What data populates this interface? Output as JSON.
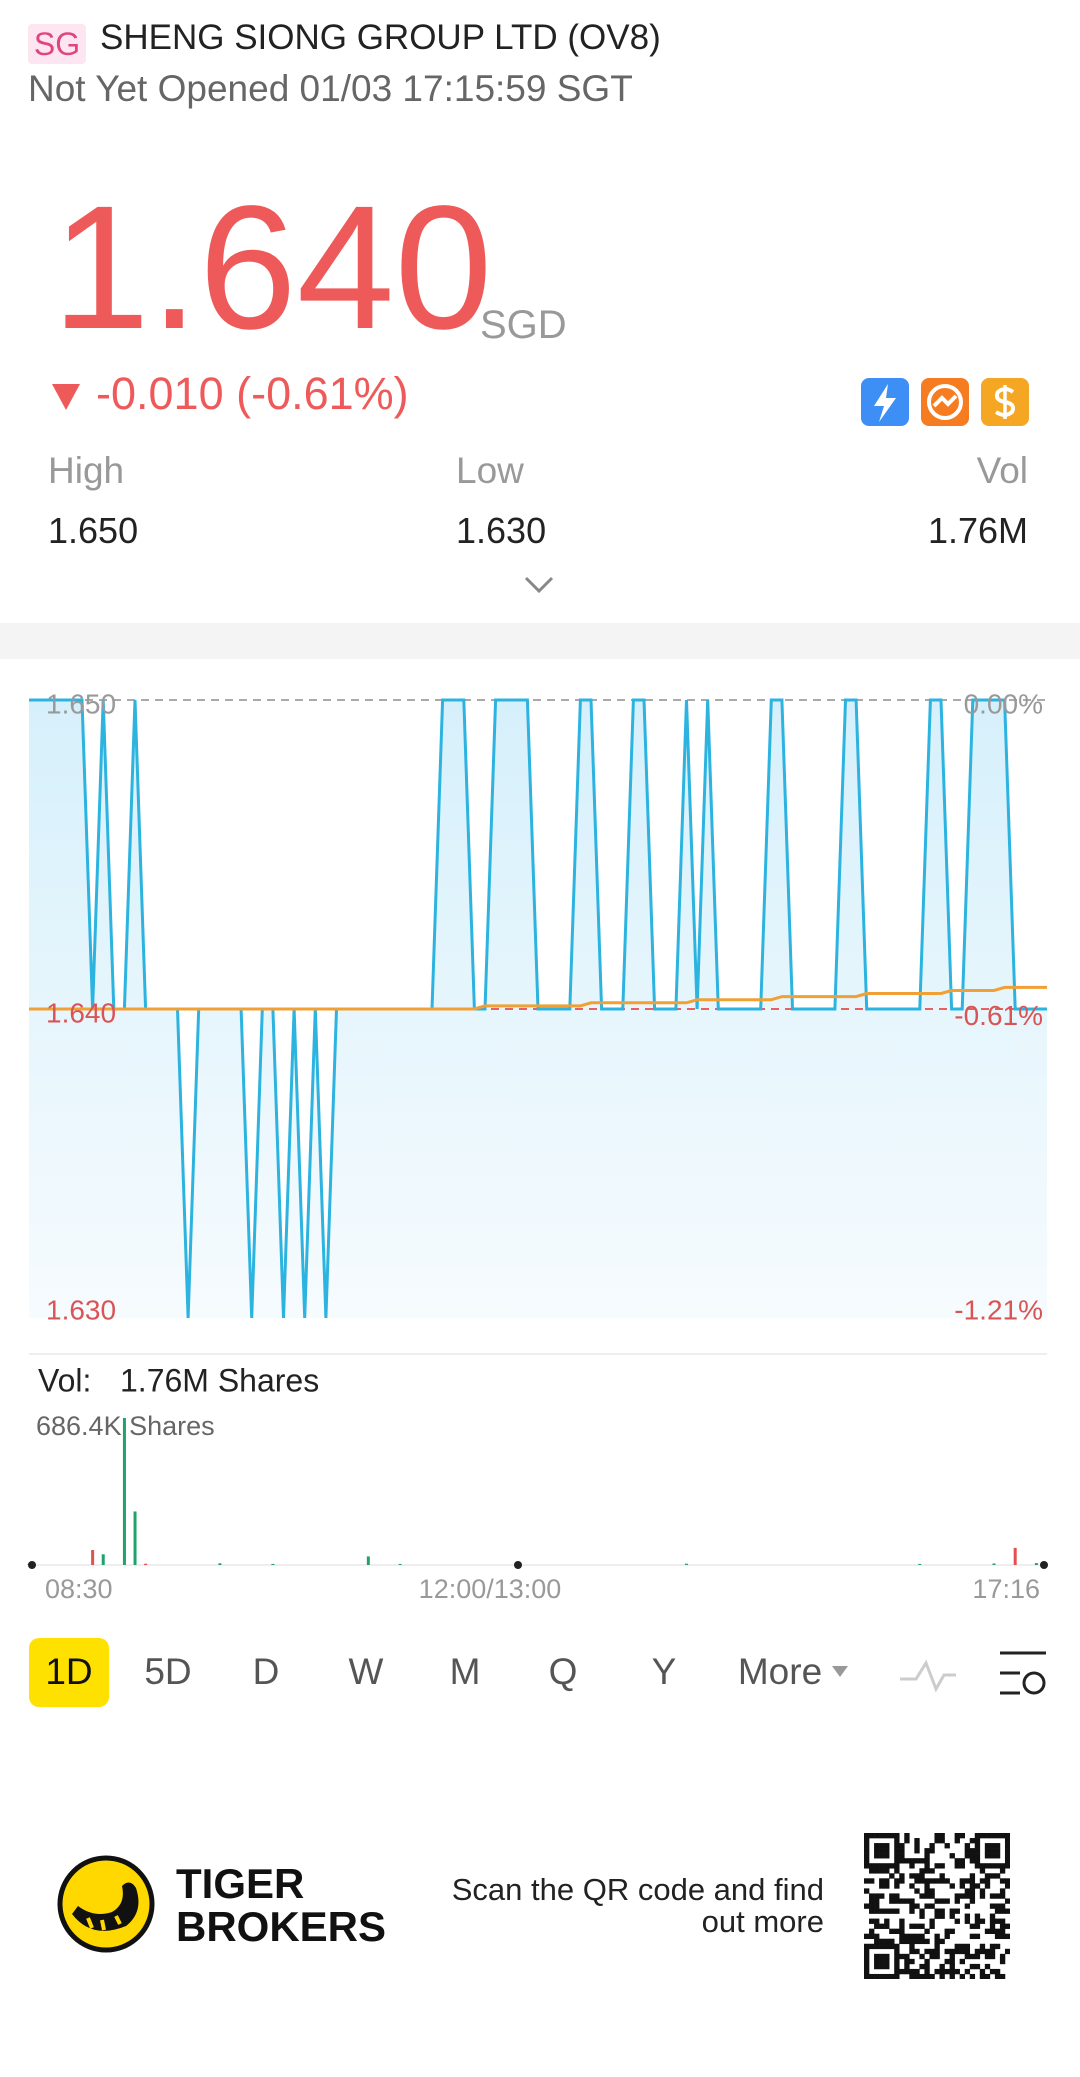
{
  "header": {
    "badge": "SG",
    "name": "SHENG SIONG GROUP LTD (OV8)",
    "status": "Not Yet Opened 01/03 17:15:59 SGT"
  },
  "quote": {
    "price": "1.640",
    "currency": "SGD",
    "change": "-0.010 (-0.61%)",
    "stats": [
      {
        "label": "High",
        "value": "1.650"
      },
      {
        "label": "Low",
        "value": "1.630"
      },
      {
        "label": "Vol",
        "value": "1.76M"
      }
    ]
  },
  "chart_data": {
    "type": "line",
    "ylim": [
      1.63,
      1.65
    ],
    "yticks": [
      {
        "value": 1.65,
        "label": "1.650"
      },
      {
        "value": 1.64,
        "label": "1.640"
      },
      {
        "value": 1.63,
        "label": "1.630"
      }
    ],
    "y2lim": [
      -1.21,
      0
    ],
    "y2ticks": [
      {
        "value": 0,
        "label": "0.00%"
      },
      {
        "value": -0.61,
        "label": "-0.61%"
      },
      {
        "value": -1.21,
        "label": "-1.21%"
      }
    ],
    "x_labels": [
      "08:30",
      "12:00/13:00",
      "17:16"
    ],
    "grid": true,
    "series": [
      {
        "name": "Price",
        "color": "#2cb3e0",
        "values": [
          1.65,
          1.65,
          1.65,
          1.65,
          1.65,
          1.65,
          1.64,
          1.65,
          1.64,
          1.64,
          1.65,
          1.64,
          1.64,
          1.64,
          1.64,
          1.63,
          1.64,
          1.64,
          1.64,
          1.64,
          1.64,
          1.63,
          1.64,
          1.64,
          1.63,
          1.64,
          1.63,
          1.64,
          1.63,
          1.64,
          1.64,
          1.64,
          1.64,
          1.64,
          1.64,
          1.64,
          1.64,
          1.64,
          1.64,
          1.65,
          1.65,
          1.65,
          1.64,
          1.64,
          1.65,
          1.65,
          1.65,
          1.65,
          1.64,
          1.64,
          1.64,
          1.64,
          1.65,
          1.65,
          1.64,
          1.64,
          1.64,
          1.65,
          1.65,
          1.64,
          1.64,
          1.64,
          1.65,
          1.64,
          1.65,
          1.64,
          1.64,
          1.64,
          1.64,
          1.64,
          1.65,
          1.65,
          1.64,
          1.64,
          1.64,
          1.64,
          1.64,
          1.65,
          1.65,
          1.64,
          1.64,
          1.64,
          1.64,
          1.64,
          1.64,
          1.65,
          1.65,
          1.64,
          1.64,
          1.65,
          1.65,
          1.65,
          1.65,
          1.64,
          1.64,
          1.64,
          1.64
        ]
      },
      {
        "name": "Average",
        "color": "#f0a035",
        "values": [
          1.64,
          1.64,
          1.64,
          1.64,
          1.64,
          1.64,
          1.64,
          1.64,
          1.64,
          1.64,
          1.64,
          1.64,
          1.64,
          1.64,
          1.64,
          1.64,
          1.64,
          1.64,
          1.64,
          1.64,
          1.64,
          1.64,
          1.64,
          1.64,
          1.64,
          1.64,
          1.64,
          1.64,
          1.64,
          1.64,
          1.64,
          1.64,
          1.64,
          1.64,
          1.64,
          1.64,
          1.64,
          1.64,
          1.64,
          1.64,
          1.64,
          1.64,
          1.64,
          1.6401,
          1.6401,
          1.6401,
          1.6401,
          1.6401,
          1.6401,
          1.6401,
          1.6401,
          1.6401,
          1.6401,
          1.6402,
          1.6402,
          1.6402,
          1.6402,
          1.6402,
          1.6402,
          1.6402,
          1.6402,
          1.6402,
          1.6402,
          1.6403,
          1.6403,
          1.6403,
          1.6403,
          1.6403,
          1.6403,
          1.6403,
          1.6403,
          1.6404,
          1.6404,
          1.6404,
          1.6404,
          1.6404,
          1.6404,
          1.6404,
          1.6404,
          1.6405,
          1.6405,
          1.6405,
          1.6405,
          1.6405,
          1.6405,
          1.6405,
          1.6405,
          1.6406,
          1.6406,
          1.6406,
          1.6406,
          1.6406,
          1.6407,
          1.6407,
          1.6407,
          1.6407,
          1.6407
        ]
      }
    ],
    "volume": {
      "title": "Vol:",
      "total": "1.76M Shares",
      "up_color": "#1fa36a",
      "down_color": "#e25050",
      "ylim": [
        0,
        686400
      ],
      "yticks": [
        {
          "value": 686400,
          "label": "686.4K Shares"
        }
      ],
      "values": [
        4000,
        0,
        0,
        0,
        0,
        0,
        70000,
        50000,
        0,
        686400,
        250000,
        6000,
        0,
        0,
        0,
        0,
        0,
        0,
        8000,
        0,
        0,
        0,
        0,
        5000,
        0,
        0,
        0,
        0,
        0,
        0,
        0,
        0,
        40000,
        0,
        0,
        5000,
        0,
        0,
        0,
        0,
        0,
        0,
        0,
        0,
        0,
        0,
        0,
        0,
        0,
        0,
        0,
        0,
        0,
        0,
        0,
        0,
        0,
        0,
        0,
        0,
        0,
        0,
        6000,
        0,
        0,
        0,
        0,
        0,
        0,
        0,
        0,
        0,
        0,
        0,
        0,
        0,
        0,
        0,
        0,
        0,
        0,
        0,
        0,
        0,
        5000,
        0,
        0,
        0,
        0,
        0,
        0,
        7000,
        0,
        80000,
        0,
        9000,
        0
      ]
    }
  },
  "periods": [
    "1D",
    "5D",
    "D",
    "W",
    "M",
    "Q",
    "Y",
    "More"
  ],
  "footer": {
    "brand": [
      "TIGER",
      "BROKERS"
    ],
    "scan": [
      "Scan the QR code and find",
      "out more"
    ]
  }
}
